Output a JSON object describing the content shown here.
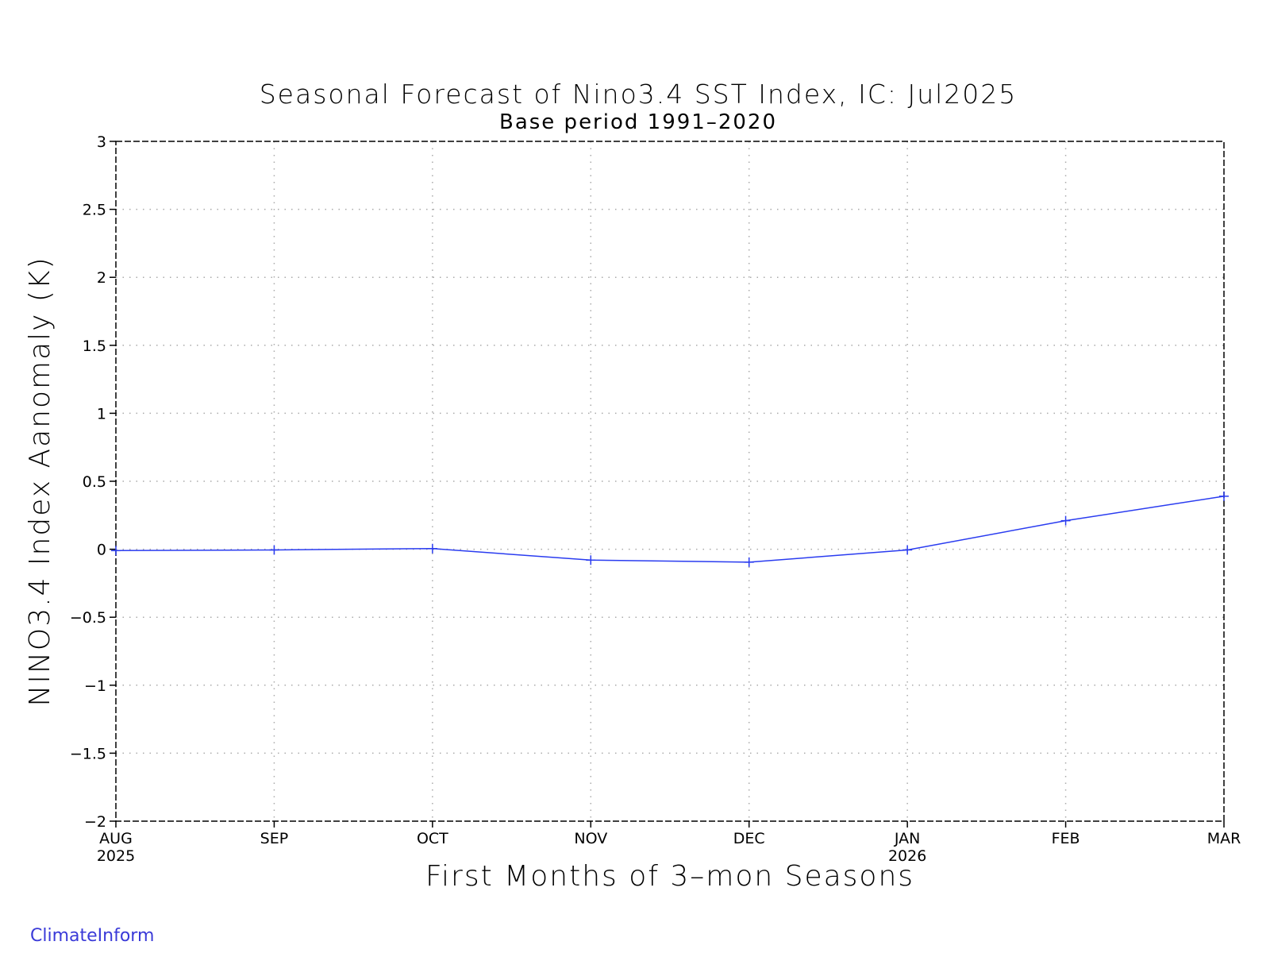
{
  "chart_data": {
    "type": "line",
    "title": "Seasonal Forecast of Nino3.4 SST Index, IC: Jul2025",
    "subtitle": "Base period 1991–2020",
    "xlabel": "First Months of 3–mon Seasons",
    "ylabel": "NINO3.4 Index Aanomaly (K)",
    "categories": [
      "AUG",
      "SEP",
      "OCT",
      "NOV",
      "DEC",
      "JAN",
      "FEB",
      "MAR"
    ],
    "category_sublabels": [
      "2025",
      "",
      "",
      "",
      "",
      "2026",
      "",
      ""
    ],
    "ylim": [
      -2,
      3
    ],
    "yticks": [
      -2,
      -1.5,
      -1,
      -0.5,
      0,
      0.5,
      1,
      1.5,
      2,
      2.5,
      3
    ],
    "ytick_labels": [
      "−2",
      "−1.5",
      "−1",
      "−0.5",
      "0",
      "0.5",
      "1",
      "1.5",
      "2",
      "2.5",
      "3"
    ],
    "grid": true,
    "series": [
      {
        "values": [
          -0.01,
          -0.005,
          0.005,
          -0.08,
          -0.095,
          -0.005,
          0.21,
          0.39
        ]
      }
    ],
    "colors": {
      "series": "#2a3cf0",
      "grid": "#aaaaaa",
      "frame": "#000000"
    }
  },
  "footer": {
    "credit": "ClimateInform"
  }
}
